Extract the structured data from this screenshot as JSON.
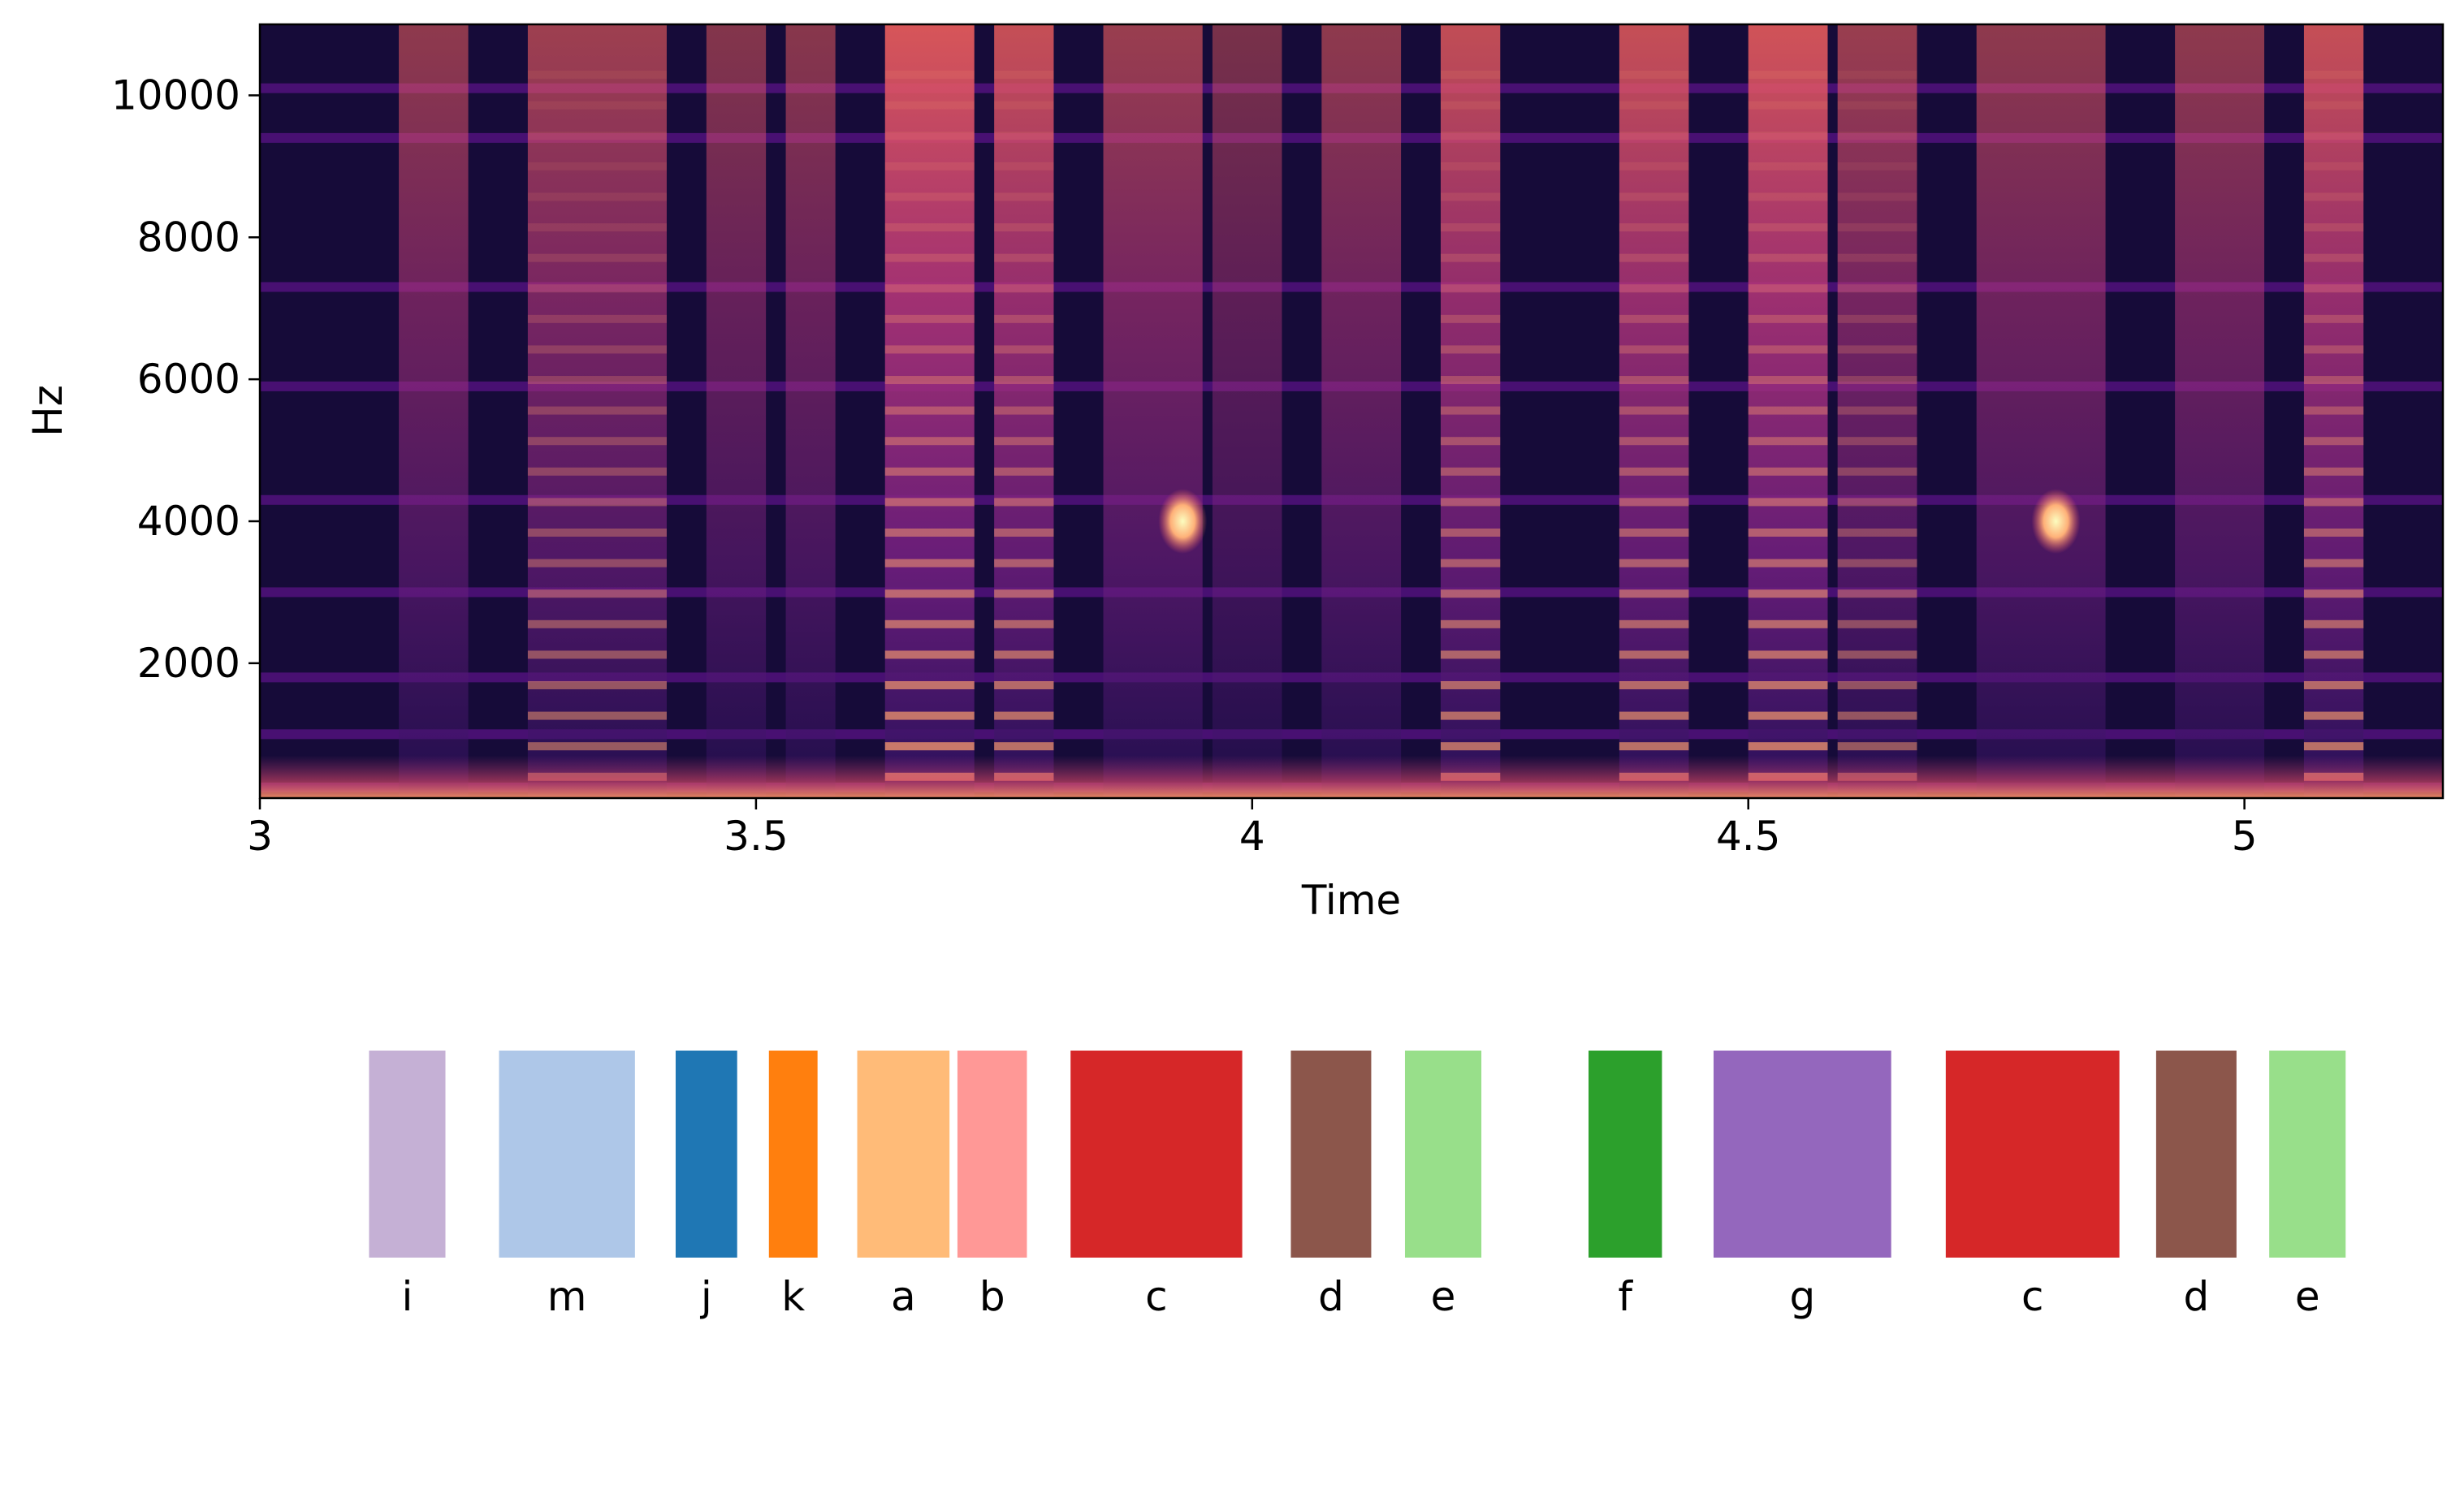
{
  "chart_data": [
    {
      "type": "heatmap",
      "title": "",
      "xlabel": "Time",
      "ylabel": "Hz",
      "xlim": [
        3.0,
        5.2
      ],
      "ylim": [
        100,
        11000
      ],
      "xticks": [
        {
          "value": 3.0,
          "label": "3"
        },
        {
          "value": 3.5,
          "label": "3.5"
        },
        {
          "value": 4.0,
          "label": "4"
        },
        {
          "value": 4.5,
          "label": "4.5"
        },
        {
          "value": 5.0,
          "label": "5"
        }
      ],
      "yticks": [
        {
          "value": 2000,
          "label": "2000"
        },
        {
          "value": 4000,
          "label": "4000"
        },
        {
          "value": 6000,
          "label": "6000"
        },
        {
          "value": 8000,
          "label": "8000"
        },
        {
          "value": 10000,
          "label": "10000"
        }
      ],
      "colormap": "magma",
      "grid": false,
      "harmonic_bands_hz": [
        250,
        1000,
        1800,
        3000,
        4300,
        5900,
        7300,
        9400,
        10100
      ],
      "vocalizations": [
        {
          "start": 3.14,
          "end": 3.21,
          "intensity": 0.55,
          "harmonics": false
        },
        {
          "start": 3.27,
          "end": 3.41,
          "intensity": 0.62,
          "harmonics": true
        },
        {
          "start": 3.45,
          "end": 3.51,
          "intensity": 0.5,
          "harmonics": false
        },
        {
          "start": 3.53,
          "end": 3.58,
          "intensity": 0.52,
          "harmonics": false
        },
        {
          "start": 3.63,
          "end": 3.72,
          "intensity": 0.88,
          "harmonics": true
        },
        {
          "start": 3.74,
          "end": 3.8,
          "intensity": 0.8,
          "harmonics": true
        },
        {
          "start": 3.85,
          "end": 3.95,
          "intensity": 0.6,
          "harmonics": false
        },
        {
          "start": 3.96,
          "end": 4.03,
          "intensity": 0.45,
          "harmonics": false
        },
        {
          "start": 4.07,
          "end": 4.15,
          "intensity": 0.55,
          "harmonics": false
        },
        {
          "start": 4.19,
          "end": 4.25,
          "intensity": 0.78,
          "harmonics": true
        },
        {
          "start": 4.37,
          "end": 4.44,
          "intensity": 0.8,
          "harmonics": true
        },
        {
          "start": 4.5,
          "end": 4.58,
          "intensity": 0.85,
          "harmonics": true
        },
        {
          "start": 4.59,
          "end": 4.67,
          "intensity": 0.6,
          "harmonics": true
        },
        {
          "start": 4.73,
          "end": 4.86,
          "intensity": 0.55,
          "harmonics": false
        },
        {
          "start": 4.93,
          "end": 5.02,
          "intensity": 0.55,
          "harmonics": false
        },
        {
          "start": 5.06,
          "end": 5.12,
          "intensity": 0.8,
          "harmonics": true
        }
      ],
      "bright_spots": [
        {
          "time": 3.93,
          "hz": 4000
        },
        {
          "time": 4.81,
          "hz": 4000
        }
      ]
    },
    {
      "type": "bar",
      "title": "",
      "xlabel": "",
      "ylabel": "",
      "segments": [
        {
          "label": "i",
          "start": 3.11,
          "end": 3.187,
          "color": "#c5b0d5"
        },
        {
          "label": "m",
          "start": 3.241,
          "end": 3.378,
          "color": "#aec7e8"
        },
        {
          "label": "j",
          "start": 3.419,
          "end": 3.481,
          "color": "#1f77b4"
        },
        {
          "label": "k",
          "start": 3.513,
          "end": 3.562,
          "color": "#ff7f0e"
        },
        {
          "label": "a",
          "start": 3.602,
          "end": 3.695,
          "color": "#ffbb78"
        },
        {
          "label": "b",
          "start": 3.703,
          "end": 3.773,
          "color": "#ff9896"
        },
        {
          "label": "c",
          "start": 3.817,
          "end": 3.99,
          "color": "#d62728"
        },
        {
          "label": "d",
          "start": 4.039,
          "end": 4.12,
          "color": "#8c564b"
        },
        {
          "label": "e",
          "start": 4.154,
          "end": 4.231,
          "color": "#98df8a"
        },
        {
          "label": "f",
          "start": 4.339,
          "end": 4.413,
          "color": "#2ca02c"
        },
        {
          "label": "g",
          "start": 4.465,
          "end": 4.644,
          "color": "#9467bd"
        },
        {
          "label": "c",
          "start": 4.699,
          "end": 4.874,
          "color": "#d62728"
        },
        {
          "label": "d",
          "start": 4.911,
          "end": 4.992,
          "color": "#8c564b"
        },
        {
          "label": "e",
          "start": 5.025,
          "end": 5.102,
          "color": "#98df8a"
        }
      ]
    }
  ]
}
